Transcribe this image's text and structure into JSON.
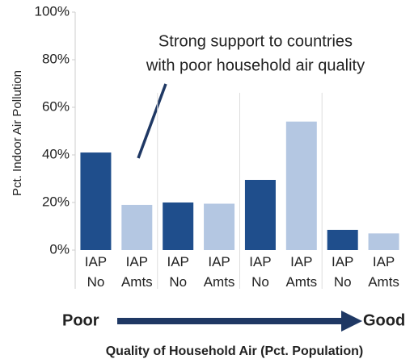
{
  "chart_data": {
    "type": "bar",
    "y_axis_label": "Pct. Indoor Air Pollution",
    "x_axis_label": "Quality of Household Air (Pct. Population)",
    "annotation": [
      "Strong support to countries",
      "with poor household air quality"
    ],
    "scale_low": "Poor",
    "scale_high": "Good",
    "categories": [
      "IAP No",
      "IAP Amts",
      "IAP No",
      "IAP Amts",
      "IAP No",
      "IAP Amts",
      "IAP No",
      "IAP Amts"
    ],
    "values": [
      41,
      19,
      20,
      19.5,
      29.5,
      54,
      8.5,
      7
    ],
    "colors": [
      "#1f4e8c",
      "#b4c7e2",
      "#1f4e8c",
      "#b4c7e2",
      "#1f4e8c",
      "#b4c7e2",
      "#1f4e8c",
      "#b4c7e2"
    ],
    "ylim": [
      0,
      100
    ],
    "yticks": [
      {
        "value": 0,
        "label": "0%"
      },
      {
        "value": 20,
        "label": "20%"
      },
      {
        "value": 40,
        "label": "40%"
      },
      {
        "value": 60,
        "label": "60%"
      },
      {
        "value": 80,
        "label": "80%"
      },
      {
        "value": 100,
        "label": "100%"
      }
    ],
    "grid": false
  }
}
